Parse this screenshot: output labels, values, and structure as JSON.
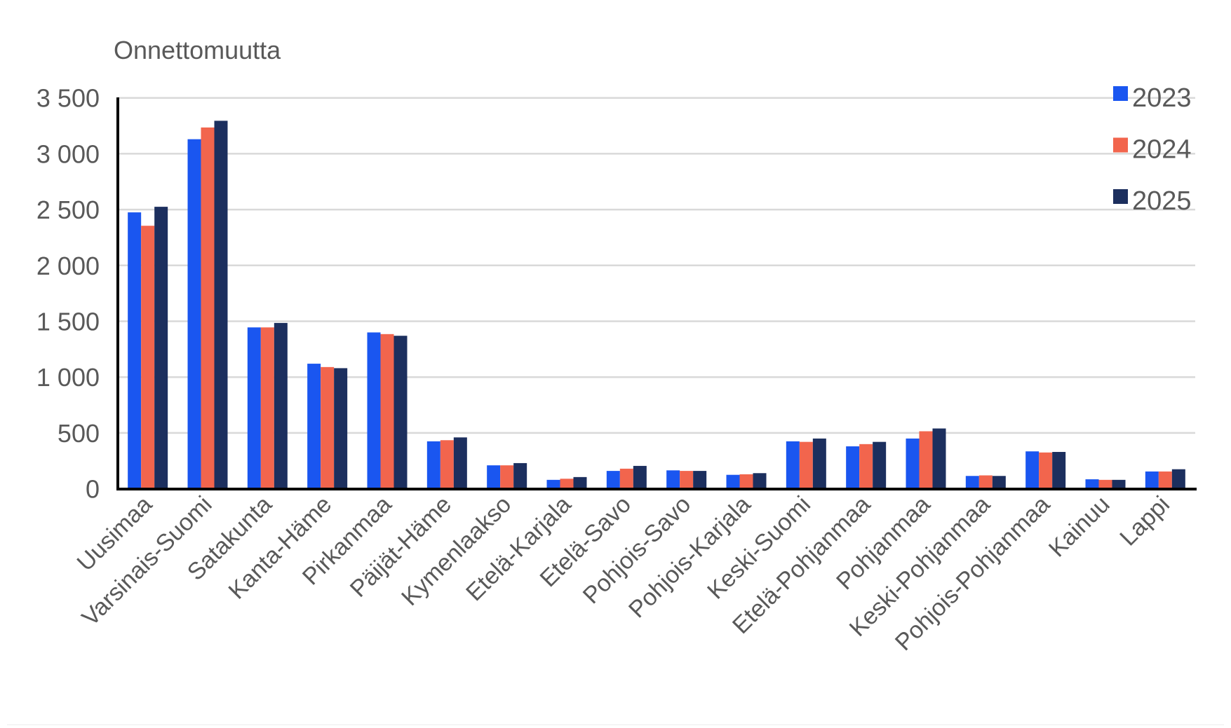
{
  "chart_data": {
    "type": "bar",
    "title": "Onnettomuutta",
    "xlabel": "",
    "ylabel": "Onnettomuutta",
    "ylim": [
      0,
      3500
    ],
    "yticks": [
      0,
      500,
      1000,
      1500,
      2000,
      2500,
      3000,
      3500
    ],
    "ytick_labels": [
      "0",
      "500",
      "1 000",
      "1 500",
      "2 000",
      "2 500",
      "3 000",
      "3 500"
    ],
    "grid": true,
    "legend_position": "top-right",
    "categories": [
      "Uusimaa",
      "Varsinais-Suomi",
      "Satakunta",
      "Kanta-Häme",
      "Pirkanmaa",
      "Päijät-Häme",
      "Kymenlaakso",
      "Etelä-Karjala",
      "Etelä-Savo",
      "Pohjois-Savo",
      "Pohjois-Karjala",
      "Keski-Suomi",
      "Etelä-Pohjanmaa",
      "Pohjanmaa",
      "Keski-Pohjanmaa",
      "Pohjois-Pohjanmaa",
      "Kainuu",
      "Lappi"
    ],
    "series": [
      {
        "name": "2023",
        "color": "#1a56f0",
        "values": [
          2475,
          3130,
          1445,
          1120,
          1400,
          425,
          210,
          80,
          160,
          165,
          125,
          425,
          380,
          450,
          115,
          335,
          85,
          155
        ]
      },
      {
        "name": "2024",
        "color": "#f2654d",
        "values": [
          2355,
          3235,
          1445,
          1090,
          1385,
          435,
          210,
          90,
          180,
          160,
          130,
          420,
          400,
          515,
          120,
          325,
          80,
          155
        ]
      },
      {
        "name": "2025",
        "color": "#1c2f5e",
        "values": [
          2525,
          3295,
          1485,
          1080,
          1370,
          460,
          230,
          105,
          205,
          160,
          140,
          450,
          420,
          540,
          115,
          330,
          80,
          175
        ]
      }
    ]
  }
}
